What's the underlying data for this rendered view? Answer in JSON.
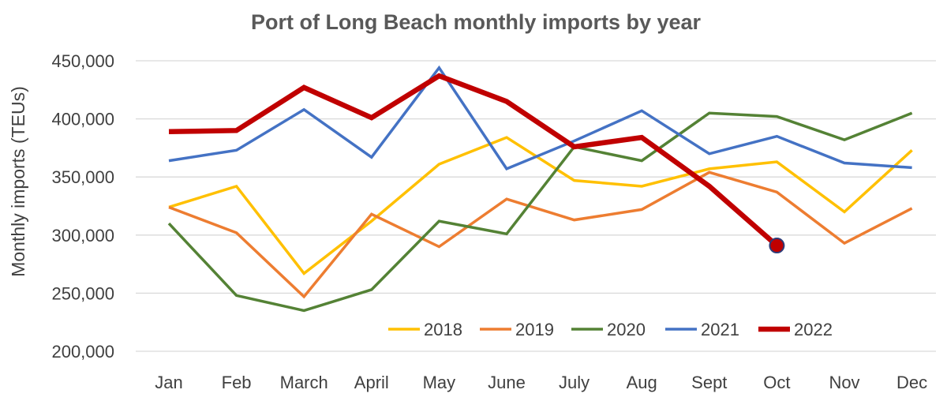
{
  "chart_data": {
    "type": "line",
    "title": "Port of Long Beach monthly imports by year",
    "xlabel": "",
    "ylabel": "Monthly imports (TEUs)",
    "ylim": [
      200000,
      450000
    ],
    "yticks": [
      200000,
      250000,
      300000,
      350000,
      400000,
      450000
    ],
    "ytick_labels": [
      "200,000",
      "250,000",
      "300,000",
      "350,000",
      "400,000",
      "450,000"
    ],
    "grid": true,
    "legend_position": "bottom-inside",
    "categories": [
      "Jan",
      "Feb",
      "March",
      "April",
      "May",
      "June",
      "July",
      "Aug",
      "Sept",
      "Oct",
      "Nov",
      "Dec"
    ],
    "series": [
      {
        "name": "2018",
        "color": "#FFC000",
        "width": 3.5,
        "values": [
          324000,
          342000,
          267000,
          312000,
          361000,
          384000,
          347000,
          342000,
          357000,
          363000,
          320000,
          373000
        ]
      },
      {
        "name": "2019",
        "color": "#ED7D31",
        "width": 3.5,
        "values": [
          324000,
          302000,
          247000,
          318000,
          290000,
          331000,
          313000,
          322000,
          354000,
          337000,
          293000,
          323000
        ]
      },
      {
        "name": "2020",
        "color": "#548235",
        "width": 3.5,
        "values": [
          310000,
          248000,
          235000,
          253000,
          312000,
          301000,
          376000,
          364000,
          405000,
          402000,
          382000,
          405000
        ]
      },
      {
        "name": "2021",
        "color": "#4472C4",
        "width": 3.5,
        "values": [
          364000,
          373000,
          408000,
          367000,
          444000,
          357000,
          381000,
          407000,
          370000,
          385000,
          362000,
          358000
        ]
      },
      {
        "name": "2022",
        "color": "#C00000",
        "width": 6.5,
        "values": [
          389000,
          390000,
          427000,
          401000,
          437000,
          415000,
          376000,
          384000,
          342000,
          291000,
          null,
          null
        ],
        "end_marker": {
          "fill": "#C00000",
          "stroke": "#2F3C78"
        }
      }
    ]
  }
}
